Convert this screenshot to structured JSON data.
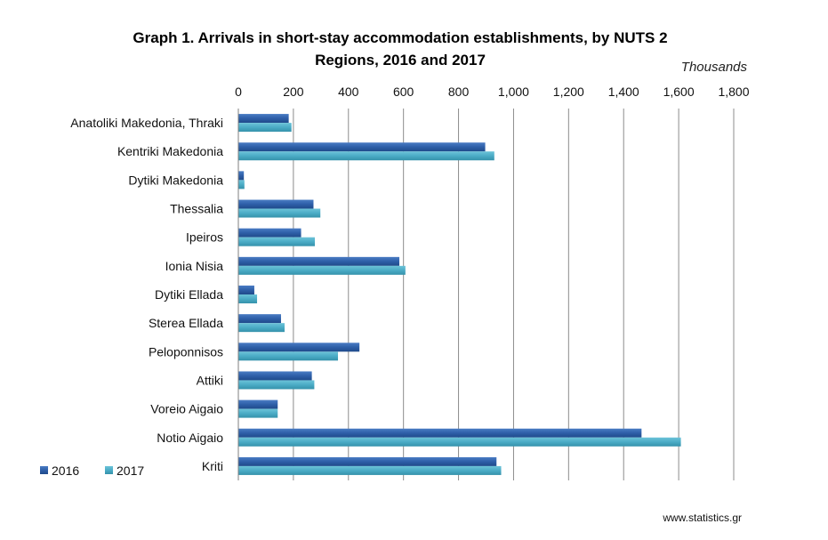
{
  "chart_data": {
    "type": "bar",
    "orientation": "horizontal",
    "title_line1": "Graph 1. Arrivals in short-stay accommodation establishments, by NUTS 2",
    "title_line2": "Regions, 2016 and 2017",
    "unit_label": "Thousands",
    "xlim": [
      0,
      1800
    ],
    "ticks": [
      0,
      200,
      400,
      600,
      800,
      1000,
      1200,
      1400,
      1600,
      1800
    ],
    "tick_labels": [
      "0",
      "200",
      "400",
      "600",
      "800",
      "1,000",
      "1,200",
      "1,400",
      "1,600",
      "1,800"
    ],
    "grid": "vertical",
    "categories": [
      "Anatoliki Makedonia, Thraki",
      "Kentriki Makedonia",
      "Dytiki Makedonia",
      "Thessalia",
      "Ipeiros",
      "Ionia Nisia",
      "Dytiki Ellada",
      "Sterea Ellada",
      "Peloponnisos",
      "Attiki",
      "Voreio Aigaio",
      "Notio Aigaio",
      "Kriti"
    ],
    "series": [
      {
        "name": "2016",
        "color": "#2E5FA8",
        "values": [
          183,
          897,
          20,
          273,
          228,
          585,
          58,
          155,
          440,
          267,
          143,
          1465,
          938
        ]
      },
      {
        "name": "2017",
        "color": "#4BACC6",
        "values": [
          193,
          930,
          22,
          298,
          278,
          607,
          68,
          168,
          362,
          276,
          143,
          1608,
          955
        ]
      }
    ],
    "legend_position": "bottom-left",
    "source": "www.statistics.gr"
  }
}
